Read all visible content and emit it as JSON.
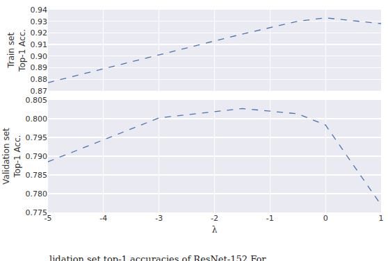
{
  "chart_data": [
    {
      "type": "line",
      "ylabel": "Train set\nTop-1 Acc.",
      "color": "#4c72b0",
      "line_style": "dashed",
      "grid": true,
      "tick_labels": "y",
      "x": [
        -5,
        -3,
        -1.5,
        -0.5,
        0,
        1
      ],
      "values": [
        0.877,
        0.901,
        0.919,
        0.93,
        0.933,
        0.928
      ],
      "xlim": [
        -5,
        1
      ],
      "xticks": [
        -5,
        -4,
        -3,
        -2,
        -1,
        0,
        1
      ],
      "ylim": [
        0.87,
        0.94
      ],
      "yticks": [
        0.87,
        0.88,
        0.89,
        {
          "value": 0.9,
          "label": "0.90"
        },
        0.91,
        0.92,
        0.93,
        0.94
      ]
    },
    {
      "type": "line",
      "xlabel": "λ",
      "ylabel": "Validation set\nTop-1 Acc.",
      "color": "#4c72b0",
      "line_style": "dashed",
      "grid": true,
      "x": [
        -5,
        -3,
        -1.5,
        -0.5,
        0,
        1
      ],
      "values": [
        0.7885,
        0.8002,
        0.8027,
        0.8013,
        0.7983,
        0.777
      ],
      "xlim": [
        -5,
        1
      ],
      "xticks": [
        -5,
        -4,
        -3,
        -2,
        -1,
        0,
        1
      ],
      "ylim": [
        0.775,
        0.805
      ],
      "yticks": [
        0.775,
        {
          "value": 0.78,
          "label": "0.780"
        },
        0.785,
        {
          "value": 0.79,
          "label": "0.790"
        },
        0.795,
        {
          "value": 0.8,
          "label": "0.800"
        },
        0.805
      ]
    }
  ],
  "caption": "lidation set top-1 accuracies of ResNet-152 For"
}
